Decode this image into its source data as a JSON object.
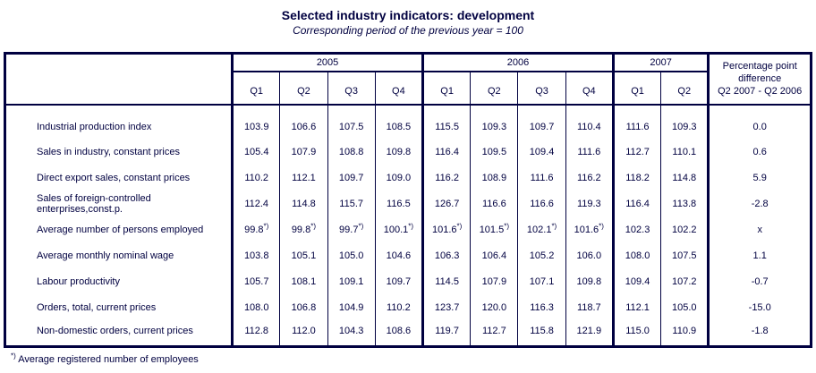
{
  "title": "Selected industry indicators: development",
  "subtitle": "Corresponding period of the previous year = 100",
  "colors": {
    "accent": "#000040",
    "text": "#000040",
    "background": "#ffffff"
  },
  "table": {
    "year_groups": [
      {
        "label": "2005",
        "quarters": [
          "Q1",
          "Q2",
          "Q3",
          "Q4"
        ]
      },
      {
        "label": "2006",
        "quarters": [
          "Q1",
          "Q2",
          "Q3",
          "Q4"
        ]
      },
      {
        "label": "2007",
        "quarters": [
          "Q1",
          "Q2"
        ]
      }
    ],
    "diff_header": [
      "Percentage point",
      "difference",
      "Q2 2007 - Q2 2006"
    ],
    "rows": [
      {
        "label": "Industrial production index",
        "values": [
          "103.9",
          "106.6",
          "107.5",
          "108.5",
          "115.5",
          "109.3",
          "109.7",
          "110.4",
          "111.6",
          "109.3"
        ],
        "diff": "0.0"
      },
      {
        "label": "Sales in industry, constant prices",
        "values": [
          "105.4",
          "107.9",
          "108.8",
          "109.8",
          "116.4",
          "109.5",
          "109.4",
          "111.6",
          "112.7",
          "110.1"
        ],
        "diff": "0.6"
      },
      {
        "label": "Direct export sales, constant prices",
        "values": [
          "110.2",
          "112.1",
          "109.7",
          "109.0",
          "116.2",
          "108.9",
          "111.6",
          "116.2",
          "118.2",
          "114.8"
        ],
        "diff": "5.9"
      },
      {
        "label": "Sales of foreign-controlled enterprises,const.p.",
        "values": [
          "112.4",
          "114.8",
          "115.7",
          "116.5",
          "126.7",
          "116.6",
          "116.6",
          "119.3",
          "116.4",
          "113.8"
        ],
        "diff": "-2.8"
      },
      {
        "label": "Average number of persons employed",
        "values": [
          "99.8*)",
          "99.8*)",
          "99.7*)",
          "100.1*)",
          "101.6*)",
          "101.5*)",
          "102.1*)",
          "101.6*)",
          "102.3",
          "102.2"
        ],
        "diff": "x"
      },
      {
        "label": "Average monthly nominal wage",
        "values": [
          "103.8",
          "105.1",
          "105.0",
          "104.6",
          "106.3",
          "106.4",
          "105.2",
          "106.0",
          "108.0",
          "107.5"
        ],
        "diff": "1.1"
      },
      {
        "label": "Labour productivity",
        "values": [
          "105.7",
          "108.1",
          "109.1",
          "109.7",
          "114.5",
          "107.9",
          "107.1",
          "109.8",
          "109.4",
          "107.2"
        ],
        "diff": "-0.7"
      },
      {
        "label": "Orders, total, current prices",
        "values": [
          "108.0",
          "106.8",
          "104.9",
          "110.2",
          "123.7",
          "120.0",
          "116.3",
          "118.7",
          "112.1",
          "105.0"
        ],
        "diff": "-15.0"
      },
      {
        "label": "Non-domestic orders, current prices",
        "values": [
          "112.8",
          "112.0",
          "104.3",
          "108.6",
          "119.7",
          "112.7",
          "115.8",
          "121.9",
          "115.0",
          "110.9"
        ],
        "diff": "-1.8"
      }
    ]
  },
  "footnote": {
    "marker": "*)",
    "text": "Average registered number of employees"
  }
}
